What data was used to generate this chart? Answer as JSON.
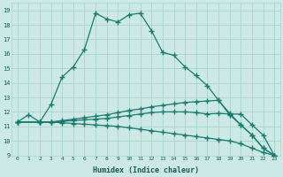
{
  "xlabel": "Humidex (Indice chaleur)",
  "bg_color": "#cce9e5",
  "grid_color": "#aad4cf",
  "line_color": "#1a7a6e",
  "xlim": [
    -0.5,
    23.5
  ],
  "ylim": [
    9,
    19.5
  ],
  "xticks": [
    0,
    1,
    2,
    3,
    4,
    5,
    6,
    7,
    8,
    9,
    10,
    11,
    12,
    13,
    14,
    15,
    16,
    17,
    18,
    19,
    20,
    21,
    22,
    23
  ],
  "yticks": [
    9,
    10,
    11,
    12,
    13,
    14,
    15,
    16,
    17,
    18,
    19
  ],
  "lines": [
    {
      "x": [
        0,
        1,
        2,
        3,
        4,
        5,
        6,
        7,
        8,
        9,
        10,
        11,
        12,
        13,
        14,
        15,
        16,
        17,
        18,
        19,
        20,
        21,
        22,
        23
      ],
      "y": [
        11.3,
        11.8,
        11.3,
        12.5,
        14.4,
        15.1,
        16.3,
        18.8,
        18.4,
        18.2,
        18.7,
        18.8,
        17.6,
        16.1,
        15.9,
        15.1,
        14.5,
        13.8,
        12.8,
        11.8,
        11.1,
        10.4,
        9.5,
        9.0
      ]
    },
    {
      "x": [
        0,
        2,
        3,
        4,
        5,
        6,
        7,
        8,
        9,
        10,
        11,
        12,
        13,
        14,
        15,
        16,
        17,
        18,
        19,
        20,
        21,
        22,
        23
      ],
      "y": [
        11.3,
        11.3,
        11.3,
        11.4,
        11.5,
        11.6,
        11.7,
        11.8,
        11.95,
        12.1,
        12.2,
        12.35,
        12.45,
        12.55,
        12.65,
        12.7,
        12.75,
        12.8,
        11.9,
        11.1,
        10.4,
        9.5,
        9.0
      ]
    },
    {
      "x": [
        0,
        2,
        3,
        4,
        5,
        6,
        7,
        8,
        9,
        10,
        11,
        12,
        13,
        14,
        15,
        16,
        17,
        18,
        19,
        20,
        21,
        22,
        23
      ],
      "y": [
        11.3,
        11.3,
        11.3,
        11.35,
        11.4,
        11.45,
        11.5,
        11.55,
        11.65,
        11.75,
        11.85,
        11.95,
        12.0,
        12.0,
        12.0,
        11.95,
        11.85,
        11.9,
        11.85,
        11.85,
        11.1,
        10.4,
        9.0
      ]
    },
    {
      "x": [
        0,
        2,
        3,
        4,
        5,
        6,
        7,
        8,
        9,
        10,
        11,
        12,
        13,
        14,
        15,
        16,
        17,
        18,
        19,
        20,
        21,
        22,
        23
      ],
      "y": [
        11.3,
        11.3,
        11.3,
        11.25,
        11.2,
        11.15,
        11.1,
        11.05,
        11.0,
        10.9,
        10.8,
        10.7,
        10.6,
        10.5,
        10.4,
        10.3,
        10.2,
        10.1,
        10.0,
        9.8,
        9.5,
        9.2,
        9.0
      ]
    }
  ]
}
